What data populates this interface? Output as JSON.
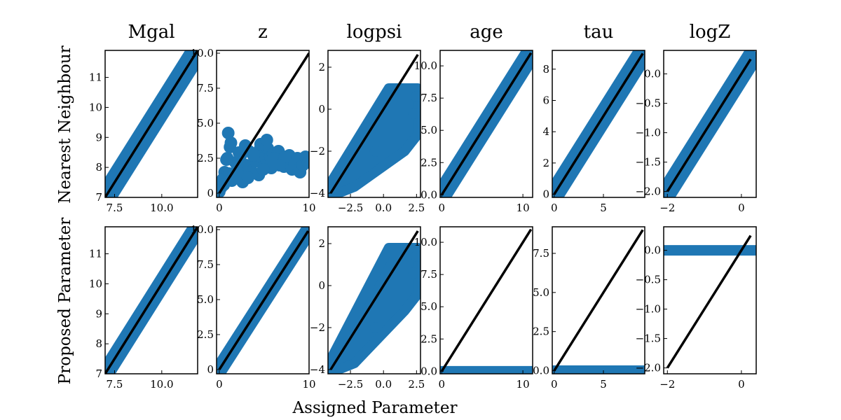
{
  "figure": {
    "xlabel": "Assigned Parameter",
    "rows": [
      "Nearest Neighbour",
      "Proposed Parameter"
    ],
    "columns": [
      "Mgal",
      "z",
      "logpsi",
      "age",
      "tau",
      "logZ"
    ],
    "colors": {
      "points": "#1f77b4",
      "identity_line": "#000000"
    }
  },
  "chart_data": [
    {
      "type": "scatter",
      "row": "Nearest Neighbour",
      "title": "Mgal",
      "xlim": [
        7.0,
        11.9
      ],
      "ylim": [
        7.0,
        11.9
      ],
      "xticks": [
        7.5,
        10.0
      ],
      "xtick_labels": [
        "7.5",
        "10.0"
      ],
      "yticks": [
        7,
        8,
        9,
        10,
        11
      ],
      "ytick_labels": [
        "7",
        "8",
        "9",
        "10",
        "11"
      ],
      "identity_line": [
        [
          7.0,
          7.0
        ],
        [
          11.9,
          11.9
        ]
      ],
      "pattern": "band",
      "x": [
        7.0,
        11.9
      ],
      "y": [
        7.0,
        11.9
      ],
      "spread": 0.18
    },
    {
      "type": "scatter",
      "row": "Nearest Neighbour",
      "title": "z",
      "xlim": [
        -0.3,
        10.0
      ],
      "ylim": [
        -0.3,
        10.2
      ],
      "xticks": [
        0,
        10
      ],
      "xtick_labels": [
        "0",
        "10"
      ],
      "yticks": [
        0,
        2.5,
        5.0,
        7.5,
        10.0
      ],
      "ytick_labels": [
        "0",
        "2.5",
        "5.0",
        "7.5",
        "10.0"
      ],
      "identity_line": [
        [
          0,
          0
        ],
        [
          10,
          10
        ]
      ],
      "pattern": "points",
      "x": [
        0.0,
        0.3,
        0.6,
        0.9,
        1.2,
        1.5,
        1.8,
        2.1,
        2.4,
        2.7,
        3.0,
        3.3,
        3.6,
        3.9,
        4.2,
        4.5,
        4.8,
        5.1,
        5.4,
        5.7,
        6.0,
        6.3,
        6.6,
        6.9,
        7.2,
        7.5,
        7.8,
        8.1,
        8.4,
        8.7,
        9.0,
        9.3,
        9.6,
        9.9,
        1.0,
        1.3,
        2.2,
        2.9,
        3.8,
        4.6,
        5.3,
        6.1,
        0.4,
        0.8,
        1.1,
        1.6,
        2.0,
        2.6,
        3.4,
        4.4,
        5.8,
        7.3,
        0.2,
        0.5,
        1.4,
        3.2,
        4.9,
        6.7
      ],
      "y": [
        0.1,
        0.8,
        1.5,
        2.5,
        3.3,
        1.0,
        2.2,
        1.2,
        2.7,
        1.8,
        2.0,
        3.0,
        1.6,
        2.8,
        2.3,
        3.1,
        2.5,
        2.0,
        3.2,
        2.6,
        2.8,
        2.2,
        3.0,
        2.4,
        1.9,
        2.3,
        2.7,
        1.7,
        2.1,
        2.5,
        1.5,
        2.0,
        2.6,
        2.2,
        4.3,
        3.6,
        2.9,
        3.4,
        2.7,
        3.5,
        3.8,
        2.5,
        1.0,
        2.4,
        1.4,
        1.2,
        2.0,
        0.8,
        1.5,
        1.3,
        1.8,
        2.6,
        0.4,
        0.6,
        0.9,
        1.1,
        1.7,
        2.0
      ]
    },
    {
      "type": "scatter",
      "row": "Nearest Neighbour",
      "title": "logpsi",
      "xlim": [
        -4.2,
        2.8
      ],
      "ylim": [
        -4.2,
        2.8
      ],
      "xticks": [
        -2.5,
        0.0,
        2.5
      ],
      "xtick_labels": [
        "−2.5",
        "0.0",
        "2.5"
      ],
      "yticks": [
        -4,
        -2,
        0,
        2
      ],
      "ytick_labels": [
        "−4",
        "−2",
        "0",
        "2"
      ],
      "identity_line": [
        [
          -4.0,
          -4.0
        ],
        [
          2.6,
          2.6
        ]
      ],
      "pattern": "wedge",
      "x": [
        -4.2,
        2.6
      ],
      "y": [
        -4.2,
        1.0
      ]
    },
    {
      "type": "scatter",
      "row": "Nearest Neighbour",
      "title": "age",
      "xlim": [
        -0.2,
        11.2
      ],
      "ylim": [
        -0.2,
        11.2
      ],
      "xticks": [
        0,
        10
      ],
      "xtick_labels": [
        "0",
        "10"
      ],
      "yticks": [
        0,
        2.5,
        5.0,
        7.5,
        10.0
      ],
      "ytick_labels": [
        "0.0",
        "2.5",
        "5.0",
        "7.5",
        "10.0"
      ],
      "identity_line": [
        [
          0,
          0
        ],
        [
          11.0,
          11.0
        ]
      ],
      "pattern": "band",
      "x": [
        -0.2,
        11.0
      ],
      "y": [
        -0.2,
        11.0
      ],
      "spread": 0.35
    },
    {
      "type": "scatter",
      "row": "Nearest Neighbour",
      "title": "tau",
      "xlim": [
        -0.2,
        9.2
      ],
      "ylim": [
        -0.2,
        9.2
      ],
      "xticks": [
        0,
        5
      ],
      "xtick_labels": [
        "0",
        "5"
      ],
      "yticks": [
        0,
        2,
        4,
        6,
        8
      ],
      "ytick_labels": [
        "0",
        "2",
        "4",
        "6",
        "8"
      ],
      "identity_line": [
        [
          0,
          0
        ],
        [
          9.0,
          9.0
        ]
      ],
      "pattern": "band",
      "x": [
        -0.1,
        9.0
      ],
      "y": [
        -0.1,
        9.0
      ],
      "spread": 0.3
    },
    {
      "type": "scatter",
      "row": "Nearest Neighbour",
      "title": "logZ",
      "xlim": [
        -2.1,
        0.4
      ],
      "ylim": [
        -2.1,
        0.4
      ],
      "xticks": [
        -2,
        0
      ],
      "xtick_labels": [
        "−2",
        "0"
      ],
      "yticks": [
        -2.0,
        -1.5,
        -1.0,
        -0.5,
        0.0
      ],
      "ytick_labels": [
        "−2.0",
        "−1.5",
        "−1.0",
        "−0.5",
        "0.0"
      ],
      "identity_line": [
        [
          -2.0,
          -2.0
        ],
        [
          0.25,
          0.25
        ]
      ],
      "pattern": "band",
      "x": [
        -2.05,
        0.3
      ],
      "y": [
        -2.05,
        0.3
      ],
      "spread": 0.08
    },
    {
      "type": "scatter",
      "row": "Proposed Parameter",
      "title": "Mgal",
      "xlim": [
        7.0,
        11.9
      ],
      "ylim": [
        7.0,
        11.9
      ],
      "xticks": [
        7.5,
        10.0
      ],
      "xtick_labels": [
        "7.5",
        "10.0"
      ],
      "yticks": [
        7,
        8,
        9,
        10,
        11
      ],
      "ytick_labels": [
        "7",
        "8",
        "9",
        "10",
        "11"
      ],
      "identity_line": [
        [
          7.0,
          7.0
        ],
        [
          11.9,
          11.9
        ]
      ],
      "pattern": "band",
      "x": [
        7.0,
        11.9
      ],
      "y": [
        7.0,
        11.9
      ],
      "spread": 0.12
    },
    {
      "type": "scatter",
      "row": "Proposed Parameter",
      "title": "z",
      "xlim": [
        -0.3,
        10.0
      ],
      "ylim": [
        -0.3,
        10.2
      ],
      "xticks": [
        0,
        10
      ],
      "xtick_labels": [
        "0",
        "10"
      ],
      "yticks": [
        0,
        2.5,
        5.0,
        7.5,
        10.0
      ],
      "ytick_labels": [
        "0",
        "2.5",
        "5.0",
        "7.5",
        "10.0"
      ],
      "identity_line": [
        [
          0,
          0
        ],
        [
          9.9,
          9.9
        ]
      ],
      "pattern": "band",
      "x": [
        0.0,
        9.9
      ],
      "y": [
        0.0,
        9.9
      ],
      "spread": 0.2
    },
    {
      "type": "scatter",
      "row": "Proposed Parameter",
      "title": "logpsi",
      "xlim": [
        -4.2,
        2.8
      ],
      "ylim": [
        -4.2,
        2.8
      ],
      "xticks": [
        -2.5,
        0.0,
        2.5
      ],
      "xtick_labels": [
        "−2.5",
        "0.0",
        "2.5"
      ],
      "yticks": [
        -4,
        -2,
        0,
        2
      ],
      "ytick_labels": [
        "−4",
        "−2",
        "0",
        "2"
      ],
      "identity_line": [
        [
          -4.0,
          -4.0
        ],
        [
          2.6,
          2.6
        ]
      ],
      "pattern": "wedge",
      "x": [
        -4.2,
        2.6
      ],
      "y": [
        -4.2,
        1.8
      ]
    },
    {
      "type": "scatter",
      "row": "Proposed Parameter",
      "title": "age",
      "xlim": [
        -0.2,
        11.2
      ],
      "ylim": [
        -0.2,
        11.2
      ],
      "xticks": [
        0,
        10
      ],
      "xtick_labels": [
        "0",
        "10"
      ],
      "yticks": [
        0,
        2.5,
        5.0,
        7.5,
        10.0
      ],
      "ytick_labels": [
        "0.0",
        "2.5",
        "5.0",
        "7.5",
        "10.0"
      ],
      "identity_line": [
        [
          0,
          0
        ],
        [
          11.0,
          11.0
        ]
      ],
      "pattern": "flat",
      "x": [
        -0.2,
        11.2
      ],
      "y": [
        0.0,
        0.0
      ]
    },
    {
      "type": "scatter",
      "row": "Proposed Parameter",
      "title": "tau",
      "xlim": [
        -0.2,
        9.2
      ],
      "ylim": [
        -0.2,
        9.2
      ],
      "xticks": [
        0,
        5
      ],
      "xtick_labels": [
        "0",
        "5"
      ],
      "yticks": [
        0,
        2.5,
        5.0,
        7.5
      ],
      "ytick_labels": [
        "0.0",
        "2.5",
        "5.0",
        "7.5"
      ],
      "identity_line": [
        [
          0,
          0
        ],
        [
          9.0,
          9.0
        ]
      ],
      "pattern": "flat",
      "x": [
        -0.2,
        9.2
      ],
      "y": [
        0.0,
        0.0
      ]
    },
    {
      "type": "scatter",
      "row": "Proposed Parameter",
      "title": "logZ",
      "xlim": [
        -2.1,
        0.4
      ],
      "ylim": [
        -2.1,
        0.4
      ],
      "xticks": [
        -2,
        0
      ],
      "xtick_labels": [
        "−2",
        "0"
      ],
      "yticks": [
        -2.0,
        -1.5,
        -1.0,
        -0.5,
        0.0
      ],
      "ytick_labels": [
        "−2.0",
        "−1.5",
        "−1.0",
        "−0.5",
        "0.0"
      ],
      "identity_line": [
        [
          -2.0,
          -2.0
        ],
        [
          0.25,
          0.25
        ]
      ],
      "pattern": "flat",
      "x": [
        -2.1,
        0.4
      ],
      "y": [
        0.0,
        0.0
      ]
    }
  ]
}
